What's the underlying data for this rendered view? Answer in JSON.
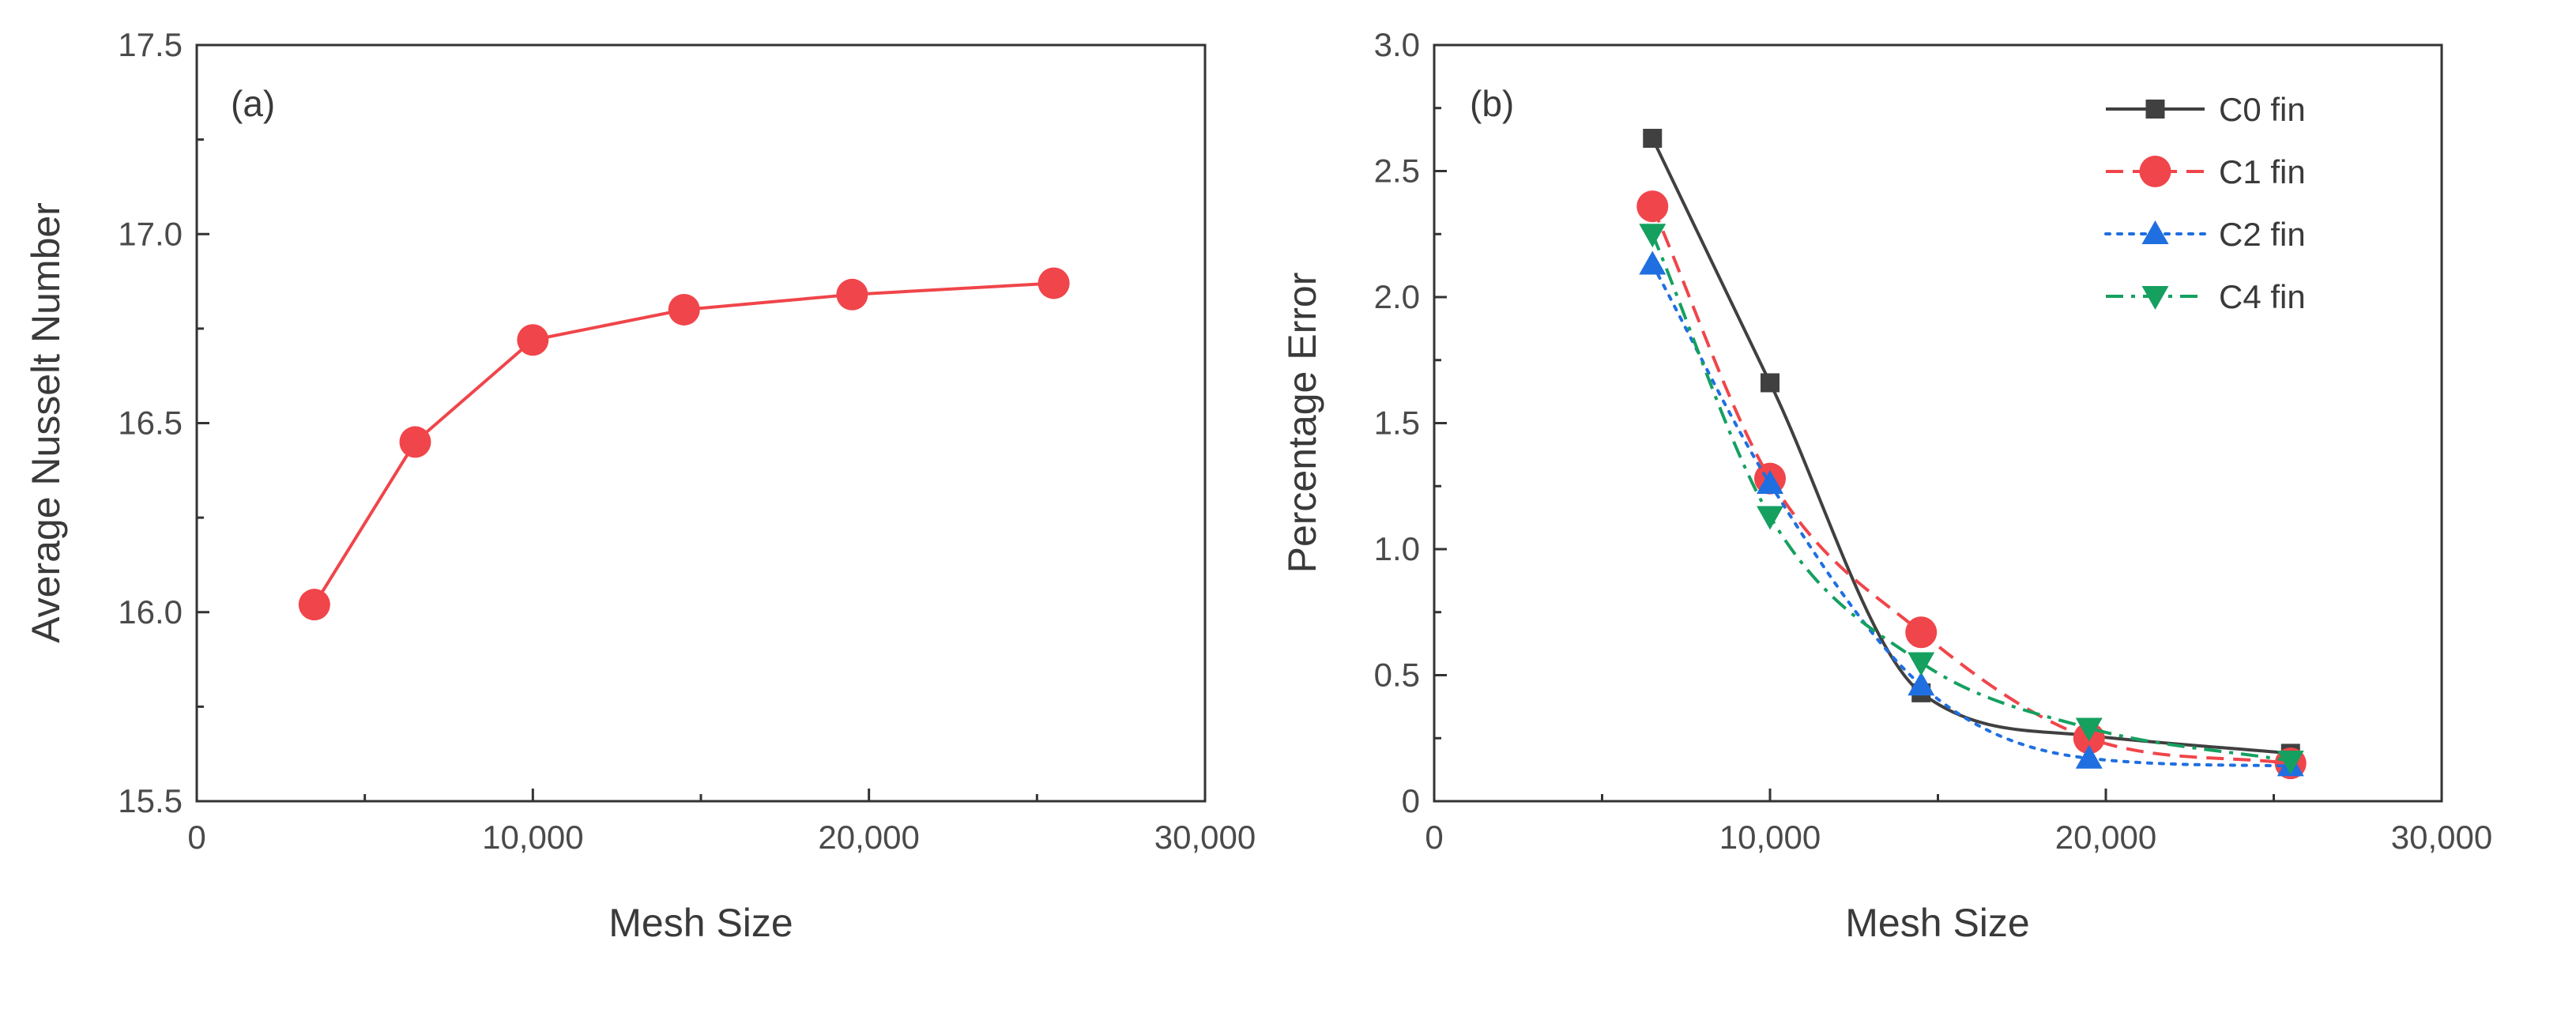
{
  "chart_data": [
    {
      "type": "line",
      "panel_label": "(a)",
      "xlabel": "Mesh Size",
      "ylabel": "Average Nusselt Number",
      "xlim": [
        0,
        30000
      ],
      "ylim": [
        15.5,
        17.5
      ],
      "xticks": [
        0,
        10000,
        20000,
        30000
      ],
      "xtick_labels": [
        "0",
        "10,000",
        "20,000",
        "30,000"
      ],
      "yticks": [
        15.5,
        16.0,
        16.5,
        17.0,
        17.5
      ],
      "ytick_labels": [
        "15.5",
        "16.0",
        "16.5",
        "17.0",
        "17.5"
      ],
      "series": [
        {
          "name": "Average Nusselt Number",
          "color": "#f0454a",
          "marker": "circle",
          "line": "solid",
          "x": [
            3500,
            6500,
            10000,
            14500,
            19500,
            25500
          ],
          "y": [
            16.02,
            16.45,
            16.72,
            16.8,
            16.84,
            16.87
          ]
        }
      ]
    },
    {
      "type": "line",
      "panel_label": "(b)",
      "xlabel": "Mesh Size",
      "ylabel": "Percentage Error",
      "xlim": [
        0,
        30000
      ],
      "ylim": [
        0,
        3.0
      ],
      "xticks": [
        0,
        10000,
        20000,
        30000
      ],
      "xtick_labels": [
        "0",
        "10,000",
        "20,000",
        "30,000"
      ],
      "yticks": [
        0,
        0.5,
        1.0,
        1.5,
        2.0,
        2.5,
        3.0
      ],
      "ytick_labels": [
        "0",
        "0.5",
        "1.0",
        "1.5",
        "2.0",
        "2.5",
        "3.0"
      ],
      "legend_position": "top-right",
      "series": [
        {
          "name": "C0 fin",
          "color": "#404040",
          "marker": "square",
          "line": "solid",
          "x": [
            6500,
            10000,
            14500,
            19500,
            25500
          ],
          "y": [
            2.63,
            1.66,
            0.43,
            0.26,
            0.19
          ]
        },
        {
          "name": "C1 fin",
          "color": "#f0454a",
          "marker": "circle",
          "line": "dash",
          "x": [
            6500,
            10000,
            14500,
            19500,
            25500
          ],
          "y": [
            2.36,
            1.28,
            0.67,
            0.25,
            0.15
          ]
        },
        {
          "name": "C2 fin",
          "color": "#1f6fe0",
          "marker": "triangle-up",
          "line": "dot",
          "x": [
            6500,
            10000,
            14500,
            19500,
            25500
          ],
          "y": [
            2.13,
            1.26,
            0.46,
            0.17,
            0.14
          ]
        },
        {
          "name": "C4 fin",
          "color": "#15a060",
          "marker": "triangle-down",
          "line": "dashdot",
          "x": [
            6500,
            10000,
            14500,
            19500,
            25500
          ],
          "y": [
            2.25,
            1.13,
            0.55,
            0.29,
            0.16
          ]
        }
      ]
    }
  ]
}
